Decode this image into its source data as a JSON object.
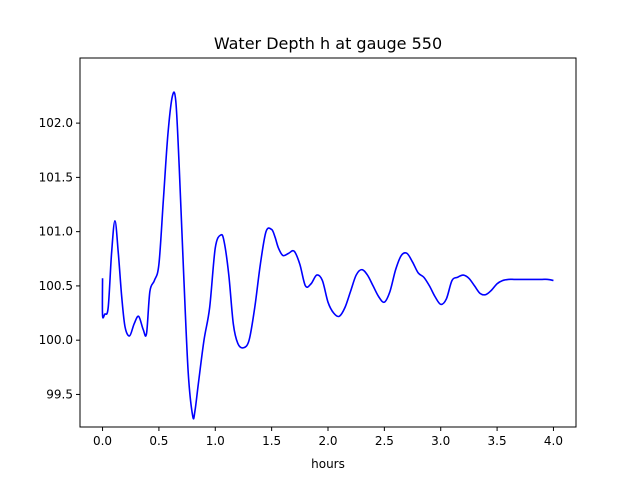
{
  "chart_data": {
    "type": "line",
    "title": "Water Depth h at gauge 550",
    "xlabel": "hours",
    "ylabel": "",
    "xlim": [
      -0.2,
      4.2
    ],
    "ylim": [
      99.2,
      102.6
    ],
    "xticks": [
      0.0,
      0.5,
      1.0,
      1.5,
      2.0,
      2.5,
      3.0,
      3.5,
      4.0
    ],
    "xtick_labels": [
      "0.0",
      "0.5",
      "1.0",
      "1.5",
      "2.0",
      "2.5",
      "3.0",
      "3.5",
      "4.0"
    ],
    "yticks": [
      99.5,
      100.0,
      100.5,
      101.0,
      101.5,
      102.0
    ],
    "ytick_labels": [
      "99.5",
      "100.0",
      "100.5",
      "101.0",
      "101.5",
      "102.0"
    ],
    "grid": false,
    "colors": {
      "line": "#0000ff",
      "axes": "#000000",
      "background": "#ffffff"
    },
    "series": [
      {
        "x": [
          0.0,
          0.0,
          0.02,
          0.05,
          0.08,
          0.11,
          0.14,
          0.17,
          0.2,
          0.24,
          0.28,
          0.32,
          0.36,
          0.39,
          0.42,
          0.46,
          0.5,
          0.54,
          0.58,
          0.62,
          0.65,
          0.68,
          0.72,
          0.76,
          0.8,
          0.82,
          0.85,
          0.9,
          0.95,
          1.0,
          1.05,
          1.08,
          1.12,
          1.16,
          1.2,
          1.25,
          1.3,
          1.35,
          1.4,
          1.45,
          1.5,
          1.53,
          1.56,
          1.6,
          1.65,
          1.7,
          1.75,
          1.8,
          1.85,
          1.9,
          1.95,
          2.0,
          2.05,
          2.1,
          2.15,
          2.2,
          2.25,
          2.3,
          2.35,
          2.4,
          2.45,
          2.5,
          2.55,
          2.6,
          2.65,
          2.7,
          2.75,
          2.8,
          2.85,
          2.9,
          2.95,
          3.0,
          3.05,
          3.1,
          3.15,
          3.2,
          3.25,
          3.3,
          3.35,
          3.4,
          3.45,
          3.5,
          3.55,
          3.6,
          3.65,
          3.7,
          3.75,
          3.8,
          3.85,
          3.9,
          3.95,
          4.0
        ],
        "y": [
          100.57,
          100.23,
          100.24,
          100.3,
          100.8,
          101.1,
          100.8,
          100.4,
          100.12,
          100.04,
          100.15,
          100.22,
          100.1,
          100.06,
          100.45,
          100.55,
          100.7,
          101.3,
          101.9,
          102.25,
          102.2,
          101.6,
          100.6,
          99.7,
          99.3,
          99.35,
          99.6,
          100.0,
          100.3,
          100.85,
          100.97,
          100.9,
          100.6,
          100.15,
          99.97,
          99.93,
          100.0,
          100.3,
          100.7,
          101.0,
          101.02,
          100.95,
          100.85,
          100.78,
          100.8,
          100.82,
          100.7,
          100.5,
          100.52,
          100.6,
          100.55,
          100.35,
          100.25,
          100.22,
          100.3,
          100.45,
          100.6,
          100.65,
          100.6,
          100.5,
          100.4,
          100.35,
          100.45,
          100.65,
          100.78,
          100.8,
          100.72,
          100.62,
          100.58,
          100.5,
          100.4,
          100.33,
          100.38,
          100.55,
          100.58,
          100.6,
          100.57,
          100.5,
          100.43,
          100.42,
          100.46,
          100.52,
          100.55,
          100.56,
          100.56,
          100.56,
          100.56,
          100.56,
          100.56,
          100.56,
          100.56,
          100.55
        ]
      }
    ]
  }
}
